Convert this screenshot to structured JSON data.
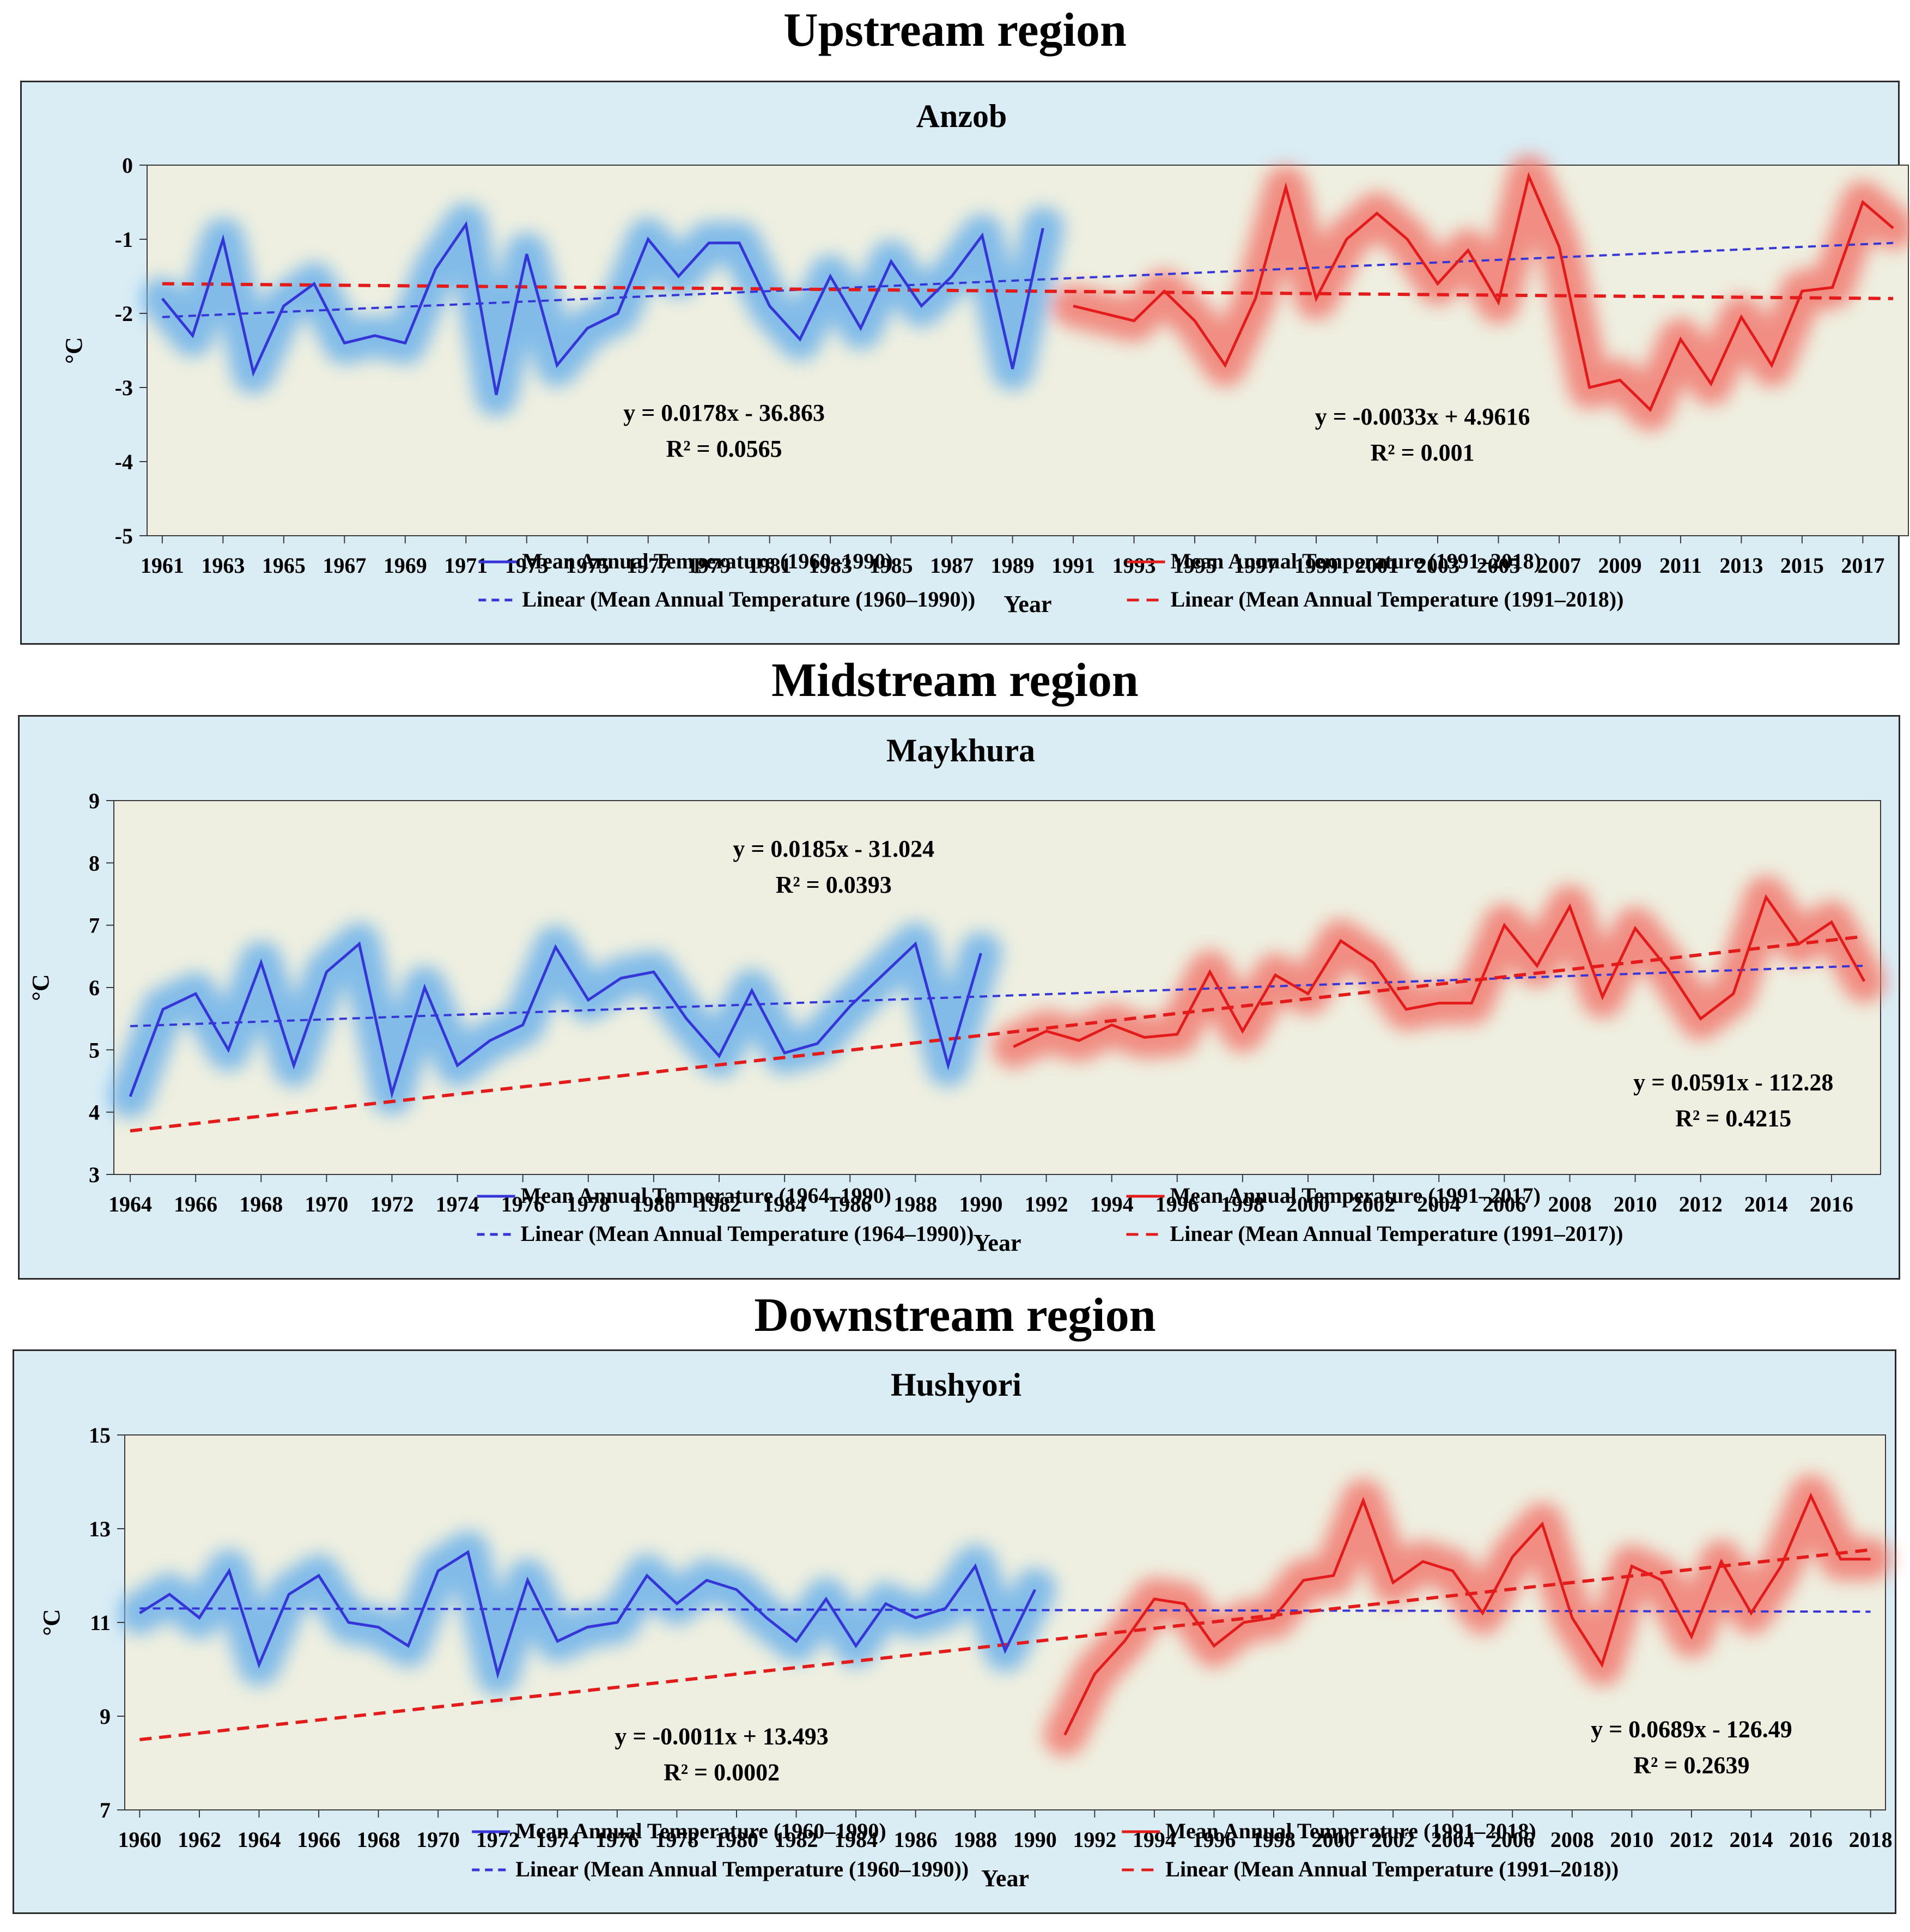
{
  "regions": [
    {
      "title": "Upstream region",
      "station": "Anzob",
      "xlabel": "Year",
      "ylabel": "°C",
      "ylim": [
        -5,
        0
      ],
      "yticks": [
        0,
        -1,
        -2,
        -3,
        -4,
        -5
      ],
      "xrange": [
        1960.5,
        2018.5
      ],
      "xticks": [
        1961,
        1963,
        1965,
        1967,
        1969,
        1971,
        1973,
        1975,
        1977,
        1979,
        1981,
        1983,
        1985,
        1987,
        1989,
        1991,
        1993,
        1995,
        1997,
        1999,
        2001,
        2003,
        2005,
        2007,
        2009,
        2011,
        2013,
        2015,
        2017
      ],
      "series": [
        {
          "name": "Mean Annual Temperature (1960–1990)",
          "color": "#3636d8",
          "x": [
            1961,
            1962,
            1963,
            1964,
            1965,
            1966,
            1967,
            1968,
            1969,
            1970,
            1971,
            1972,
            1973,
            1974,
            1975,
            1976,
            1977,
            1978,
            1979,
            1980,
            1981,
            1982,
            1983,
            1984,
            1985,
            1986,
            1987,
            1988,
            1989,
            1990
          ],
          "y": [
            -1.8,
            -2.3,
            -1.0,
            -2.8,
            -1.9,
            -1.6,
            -2.4,
            -2.3,
            -2.4,
            -1.4,
            -0.8,
            -3.1,
            -1.2,
            -2.7,
            -2.2,
            -2.0,
            -1.0,
            -1.5,
            -1.05,
            -1.05,
            -1.9,
            -2.35,
            -1.5,
            -2.2,
            -1.3,
            -1.9,
            -1.5,
            -0.95,
            -2.75,
            -0.85
          ],
          "trend": {
            "name": "Linear (Mean Annual Temperature (1960–1990))",
            "x": [
              1961,
              2018
            ],
            "y": [
              -2.05,
              -1.05
            ]
          }
        },
        {
          "name": "Mean Annual Temperature (1991–2018)",
          "color": "#e41b1b",
          "x": [
            1991,
            1992,
            1993,
            1994,
            1995,
            1996,
            1997,
            1998,
            1999,
            2000,
            2001,
            2002,
            2003,
            2004,
            2005,
            2006,
            2007,
            2008,
            2009,
            2010,
            2011,
            2012,
            2013,
            2014,
            2015,
            2016,
            2017,
            2018
          ],
          "y": [
            -1.9,
            -2.0,
            -2.1,
            -1.7,
            -2.1,
            -2.7,
            -1.8,
            -0.3,
            -1.8,
            -1.0,
            -0.65,
            -1.0,
            -1.6,
            -1.15,
            -1.85,
            -0.15,
            -1.1,
            -3.0,
            -2.9,
            -3.3,
            -2.35,
            -2.95,
            -2.05,
            -2.7,
            -1.7,
            -1.65,
            -0.5,
            -0.85
          ],
          "trend": {
            "name": "Linear (Mean Annual Temperature (1991–2018))",
            "x": [
              1961,
              2018
            ],
            "y": [
              -1.6,
              -1.8
            ]
          }
        }
      ],
      "equations": [
        {
          "eq": "y = 0.0178x - 36.863",
          "r2": "R² = 0.0565",
          "x": 1979.5,
          "y": -3.45
        },
        {
          "eq": "y = -0.0033x + 4.9616",
          "r2": "R² = 0.001",
          "x": 2002.5,
          "y": -3.5
        }
      ]
    },
    {
      "title": "Midstream region",
      "station": "Maykhura",
      "xlabel": "Year",
      "ylabel": "°C",
      "ylim": [
        3,
        9
      ],
      "yticks": [
        9,
        8,
        7,
        6,
        5,
        4,
        3
      ],
      "xrange": [
        1963.5,
        2017.5
      ],
      "xticks": [
        1964,
        1966,
        1968,
        1970,
        1972,
        1974,
        1976,
        1978,
        1980,
        1982,
        1984,
        1986,
        1988,
        1990,
        1992,
        1994,
        1996,
        1998,
        2000,
        2002,
        2004,
        2006,
        2008,
        2010,
        2012,
        2014,
        2016
      ],
      "series": [
        {
          "name": "Mean Annual Temperature (1964–1990)",
          "color": "#3636d8",
          "x": [
            1964,
            1965,
            1966,
            1967,
            1968,
            1969,
            1970,
            1971,
            1972,
            1973,
            1974,
            1975,
            1976,
            1977,
            1978,
            1979,
            1980,
            1981,
            1982,
            1983,
            1984,
            1985,
            1986,
            1987,
            1988,
            1989,
            1990
          ],
          "y": [
            4.25,
            5.65,
            5.9,
            5.0,
            6.4,
            4.75,
            6.25,
            6.7,
            4.3,
            6.0,
            4.75,
            5.15,
            5.4,
            6.65,
            5.8,
            6.15,
            6.25,
            5.5,
            4.9,
            5.95,
            4.95,
            5.1,
            5.7,
            6.2,
            6.7,
            4.75,
            6.55
          ],
          "trend": {
            "name": "Linear (Mean Annual Temperature (1964–1990))",
            "x": [
              1964,
              2017
            ],
            "y": [
              5.38,
              6.35
            ]
          }
        },
        {
          "name": "Mean Annual Temperature (1991–2017)",
          "color": "#e41b1b",
          "x": [
            1991,
            1992,
            1993,
            1994,
            1995,
            1996,
            1997,
            1998,
            1999,
            2000,
            2001,
            2002,
            2003,
            2004,
            2005,
            2006,
            2007,
            2008,
            2009,
            2010,
            2011,
            2012,
            2013,
            2014,
            2015,
            2016,
            2017
          ],
          "y": [
            5.05,
            5.3,
            5.15,
            5.4,
            5.2,
            5.25,
            6.25,
            5.3,
            6.2,
            5.9,
            6.75,
            6.4,
            5.65,
            5.75,
            5.75,
            7.0,
            6.35,
            7.3,
            5.85,
            6.95,
            6.3,
            5.5,
            5.9,
            7.45,
            6.7,
            7.05,
            6.1
          ],
          "trend": {
            "name": "Linear (Mean Annual Temperature (1991–2017))",
            "x": [
              1964,
              2017
            ],
            "y": [
              3.7,
              6.82
            ]
          }
        }
      ],
      "equations": [
        {
          "eq": "y = 0.0185x - 31.024",
          "r2": "R² = 0.0393",
          "x": 1985.5,
          "y": 8.1
        },
        {
          "eq": "y = 0.0591x - 112.28",
          "r2": "R² = 0.4215",
          "x": 2013,
          "y": 4.35
        }
      ]
    },
    {
      "title": "Downstream  region",
      "station": "Hushyori",
      "xlabel": "Year",
      "ylabel": "°C",
      "ylim": [
        7,
        15
      ],
      "yticks": [
        15,
        13,
        11,
        9,
        7
      ],
      "xrange": [
        1959.5,
        2018.5
      ],
      "xticks": [
        1960,
        1962,
        1964,
        1966,
        1968,
        1970,
        1972,
        1974,
        1976,
        1978,
        1980,
        1982,
        1984,
        1986,
        1988,
        1990,
        1992,
        1994,
        1996,
        1998,
        2000,
        2002,
        2004,
        2006,
        2008,
        2010,
        2012,
        2014,
        2016,
        2018
      ],
      "series": [
        {
          "name": "Mean Annual Temperature (1960–1990)",
          "color": "#3636d8",
          "x": [
            1960,
            1961,
            1962,
            1963,
            1964,
            1965,
            1966,
            1967,
            1968,
            1969,
            1970,
            1971,
            1972,
            1973,
            1974,
            1975,
            1976,
            1977,
            1978,
            1979,
            1980,
            1981,
            1982,
            1983,
            1984,
            1985,
            1986,
            1987,
            1988,
            1989,
            1990
          ],
          "y": [
            11.2,
            11.6,
            11.1,
            12.1,
            10.1,
            11.6,
            12.0,
            11.0,
            10.9,
            10.5,
            12.1,
            12.5,
            9.9,
            11.9,
            10.6,
            10.9,
            11.0,
            12.0,
            11.4,
            11.9,
            11.7,
            11.1,
            10.6,
            11.5,
            10.5,
            11.4,
            11.1,
            11.3,
            12.2,
            10.4,
            11.7
          ],
          "trend": {
            "name": "Linear (Mean Annual Temperature (1960–1990))",
            "x": [
              1960,
              2018
            ],
            "y": [
              11.3,
              11.23
            ]
          }
        },
        {
          "name": "Mean Annual Temperature (1991–2018)",
          "color": "#e41b1b",
          "x": [
            1991,
            1992,
            1993,
            1994,
            1995,
            1996,
            1997,
            1998,
            1999,
            2000,
            2001,
            2002,
            2003,
            2004,
            2005,
            2006,
            2007,
            2008,
            2009,
            2010,
            2011,
            2012,
            2013,
            2014,
            2015,
            2016,
            2017,
            2018
          ],
          "y": [
            8.6,
            9.9,
            10.6,
            11.5,
            11.4,
            10.5,
            11.0,
            11.1,
            11.9,
            12.0,
            13.6,
            11.85,
            12.3,
            12.1,
            11.2,
            12.4,
            13.1,
            11.1,
            10.1,
            12.2,
            11.9,
            10.7,
            12.3,
            11.2,
            12.2,
            13.7,
            12.35,
            12.35
          ],
          "trend": {
            "name": "Linear (Mean Annual Temperature (1991–2018))",
            "x": [
              1960,
              2018
            ],
            "y": [
              8.5,
              12.55
            ]
          }
        }
      ],
      "equations": [
        {
          "eq": "y = -0.0011x + 13.493",
          "r2": "R² = 0.0002",
          "x": 1979.5,
          "y": 8.4
        },
        {
          "eq": "y = 0.0689x - 126.49",
          "r2": "R² = 0.2639",
          "x": 2012,
          "y": 8.55
        }
      ]
    }
  ]
}
